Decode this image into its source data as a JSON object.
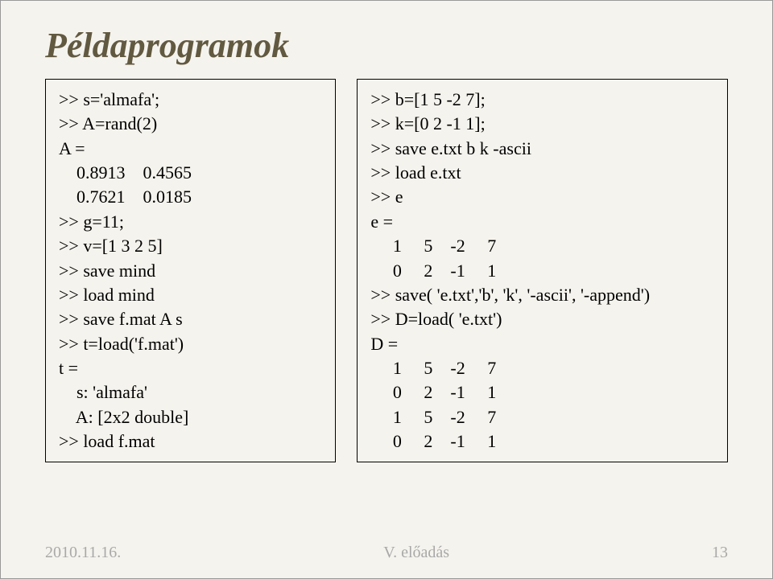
{
  "title": "Példaprogramok",
  "left_code": ">> s='almafa';\n>> A=rand(2)\nA =\n    0.8913    0.4565\n    0.7621    0.0185\n>> g=11;\n>> v=[1 3 2 5]\n>> save mind\n>> load mind\n>> save f.mat A s\n>> t=load('f.mat')\nt =\n    s: 'almafa'\n    A: [2x2 double]\n>> load f.mat",
  "right_code": ">> b=[1 5 -2 7];\n>> k=[0 2 -1 1];\n>> save e.txt b k -ascii\n>> load e.txt\n>> e\ne =\n     1     5    -2     7\n     0     2    -1     1\n>> save( 'e.txt','b', 'k', '-ascii', '-append')\n>> D=load( 'e.txt')\nD =\n     1     5    -2     7\n     0     2    -1     1\n     1     5    -2     7\n     0     2    -1     1",
  "footer": {
    "date": "2010.11.16.",
    "center": "V. előadás",
    "page": "13"
  },
  "colors": {
    "bg": "#f5f3ed",
    "title": "#625941",
    "footer": "#a9a9a9",
    "text": "#000000",
    "border": "#000000"
  },
  "font_family": "Times New Roman",
  "title_fontsize": 44,
  "code_fontsize": 22,
  "footer_fontsize": 20
}
